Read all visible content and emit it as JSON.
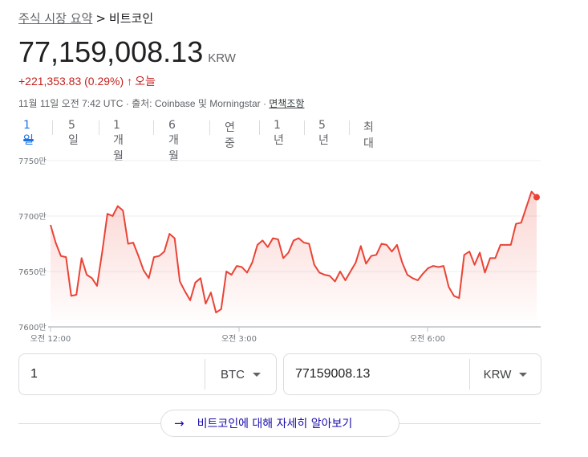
{
  "breadcrumb": {
    "parent": "주식 시장 요약",
    "separator": ">",
    "current": "비트코인"
  },
  "price": {
    "value": "77,159,008.13",
    "currency": "KRW"
  },
  "change": {
    "text": "+221,353.83 (0.29%)",
    "arrow": "↑",
    "period": "오늘",
    "color": "#c5221f"
  },
  "meta": {
    "timestamp": "11월 11일 오전 7:42 UTC",
    "source": " · 출처: Coinbase 및 Morningstar · ",
    "disclaimer": "면책조항"
  },
  "tabs": [
    "1일",
    "5일",
    "1개월",
    "6개월",
    "연중",
    "1년",
    "5년",
    "최대"
  ],
  "active_tab": 0,
  "chart_data": {
    "type": "line",
    "y_ticks": [
      "7750만",
      "7700만",
      "7650만",
      "7600만"
    ],
    "x_ticks": [
      "오전 12:00",
      "오전 3:00",
      "오전 6:00"
    ],
    "ylim": [
      76000000,
      77500000
    ],
    "color": "#ea4335",
    "series": [
      {
        "values": [
          76920000,
          76760000,
          76640000,
          76630000,
          76280000,
          76290000,
          76620000,
          76470000,
          76440000,
          76370000,
          76680000,
          77020000,
          77000000,
          77090000,
          77050000,
          76750000,
          76760000,
          76640000,
          76510000,
          76440000,
          76630000,
          76640000,
          76680000,
          76840000,
          76800000,
          76410000,
          76320000,
          76240000,
          76400000,
          76440000,
          76210000,
          76310000,
          76130000,
          76160000,
          76500000,
          76470000,
          76550000,
          76540000,
          76490000,
          76580000,
          76740000,
          76780000,
          76720000,
          76800000,
          76790000,
          76620000,
          76670000,
          76780000,
          76800000,
          76760000,
          76750000,
          76560000,
          76490000,
          76470000,
          76460000,
          76410000,
          76500000,
          76420000,
          76500000,
          76580000,
          76730000,
          76570000,
          76640000,
          76650000,
          76750000,
          76740000,
          76680000,
          76740000,
          76580000,
          76470000,
          76440000,
          76420000,
          76480000,
          76530000,
          76550000,
          76540000,
          76550000,
          76360000,
          76280000,
          76260000,
          76650000,
          76680000,
          76560000,
          76670000,
          76490000,
          76620000,
          76620000,
          76740000,
          76740000,
          76740000,
          76930000,
          76940000,
          77080000,
          77220000,
          77170000
        ]
      }
    ]
  },
  "converter": {
    "left": {
      "value": "1",
      "unit": "BTC"
    },
    "right": {
      "value": "77159008.13",
      "unit": "KRW"
    }
  },
  "more_button": {
    "label": "비트코인에 대해 자세히 알아보기",
    "icon": "arrow-right-icon"
  }
}
